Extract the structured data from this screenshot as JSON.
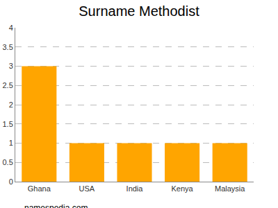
{
  "chart_data": {
    "type": "bar",
    "title": "Surname Methodist",
    "categories": [
      "Ghana",
      "USA",
      "India",
      "Kenya",
      "Malaysia"
    ],
    "values": [
      3,
      1,
      1,
      1,
      1
    ],
    "color": "#ffa500",
    "ylim": [
      0,
      4
    ],
    "yticks": [
      0,
      0.5,
      1,
      1.5,
      2,
      2.5,
      3,
      3.5,
      4
    ],
    "grid": true,
    "annotations": [
      "namespedia.com"
    ]
  }
}
